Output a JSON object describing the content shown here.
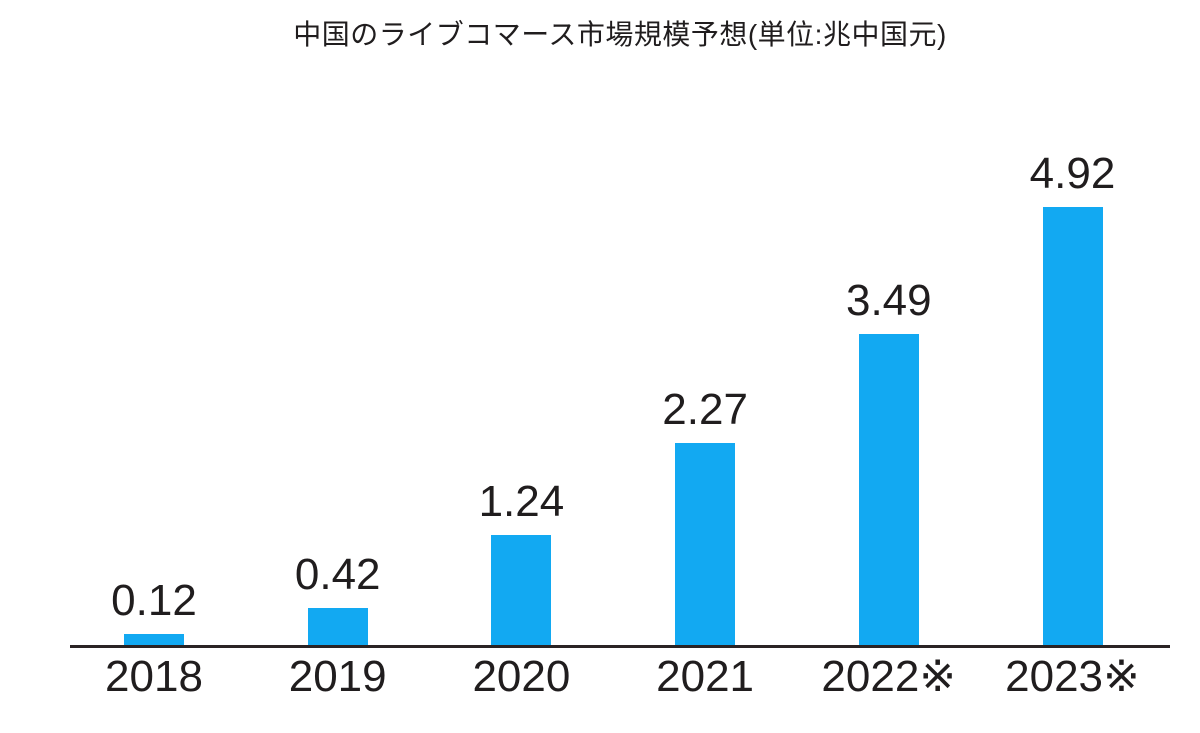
{
  "chart_data": {
    "type": "bar",
    "title": "中国のライブコマース市場規模予想(単位:兆中国元)",
    "categories": [
      "2018",
      "2019",
      "2020",
      "2021",
      "2022※",
      "2023※"
    ],
    "values": [
      0.12,
      0.42,
      1.24,
      2.27,
      3.49,
      4.92
    ],
    "data_labels": [
      "0.12",
      "0.42",
      "1.24",
      "2.27",
      "3.49",
      "4.92"
    ],
    "xlabel": "",
    "ylabel": "",
    "ylim": [
      0,
      5
    ],
    "grid": false,
    "legend": "none",
    "bar_color": "#12a9f2",
    "axis_color": "#2a2324",
    "text_color": "#201d1e"
  }
}
